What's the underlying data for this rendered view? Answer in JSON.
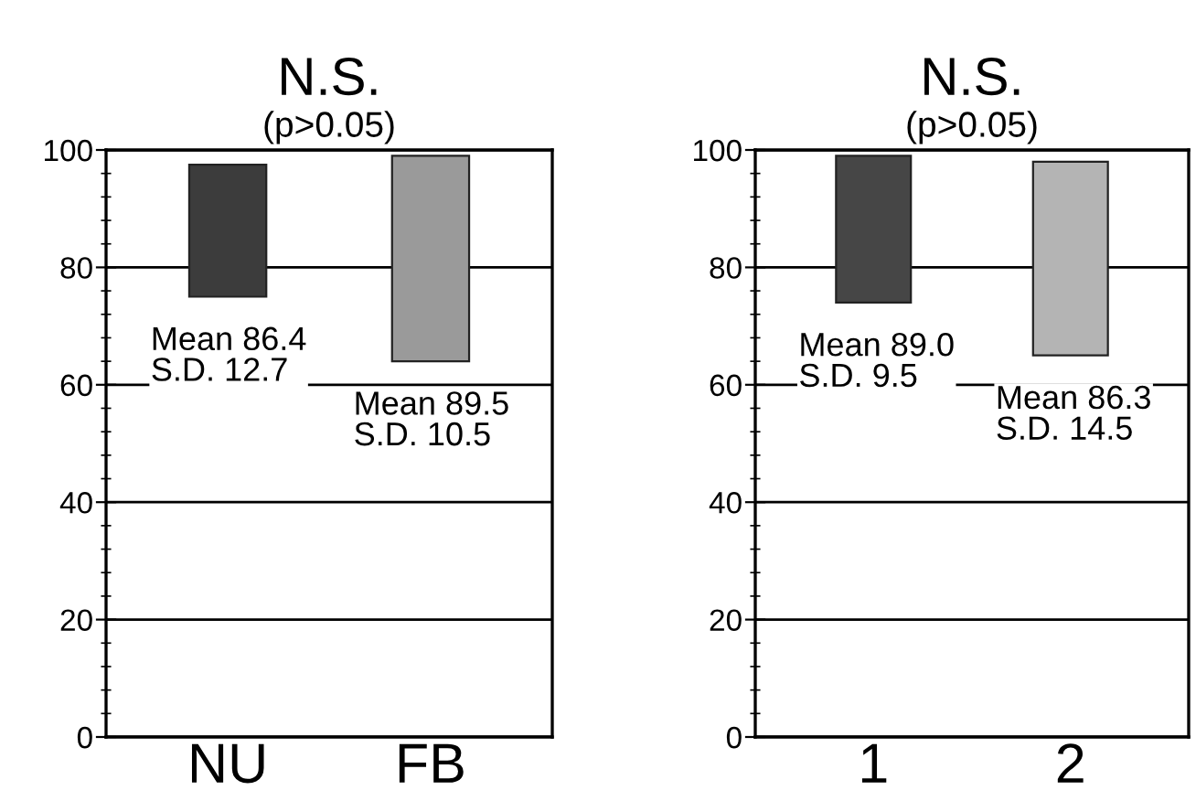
{
  "chart_data": [
    {
      "type": "bar",
      "title": "N.S.",
      "subtitle": "(p>0.05)",
      "categories": [
        "NU",
        "FB"
      ],
      "base": [
        75,
        64
      ],
      "values": [
        22.5,
        35
      ],
      "colors": [
        "#3c3c3c",
        "#9a9a9a"
      ],
      "ylim": [
        0,
        100
      ],
      "yticks": [
        0,
        {
          "value": 4,
          "label": null
        },
        {
          "value": 8,
          "label": null
        },
        {
          "value": 12,
          "label": null
        },
        {
          "value": 16,
          "label": null
        },
        20,
        {
          "value": 24,
          "label": null
        },
        {
          "value": 28,
          "label": null
        },
        {
          "value": 32,
          "label": null
        },
        {
          "value": 36,
          "label": null
        },
        40,
        {
          "value": 44,
          "label": null
        },
        {
          "value": 48,
          "label": null
        },
        {
          "value": 52,
          "label": null
        },
        {
          "value": 56,
          "label": null
        },
        60,
        {
          "value": 64,
          "label": null
        },
        {
          "value": 68,
          "label": null
        },
        {
          "value": 72,
          "label": null
        },
        {
          "value": 76,
          "label": null
        },
        80,
        {
          "value": 84,
          "label": null
        },
        {
          "value": 88,
          "label": null
        },
        {
          "value": 92,
          "label": null
        },
        {
          "value": 96,
          "label": null
        },
        100
      ],
      "grid": "y",
      "annotations": [
        "Mean 86.4\nS.D. 12.7",
        "Mean 89.5\nS.D. 10.5"
      ]
    },
    {
      "type": "bar",
      "title": "N.S.",
      "subtitle": "(p>0.05)",
      "categories": [
        "1",
        "2"
      ],
      "base": [
        74,
        65
      ],
      "values": [
        25,
        33
      ],
      "colors": [
        "#464646",
        "#b4b4b4"
      ],
      "ylim": [
        0,
        100
      ],
      "yticks": [
        0,
        {
          "value": 4,
          "label": null
        },
        {
          "value": 8,
          "label": null
        },
        {
          "value": 12,
          "label": null
        },
        {
          "value": 16,
          "label": null
        },
        20,
        {
          "value": 24,
          "label": null
        },
        {
          "value": 28,
          "label": null
        },
        {
          "value": 32,
          "label": null
        },
        {
          "value": 36,
          "label": null
        },
        40,
        {
          "value": 44,
          "label": null
        },
        {
          "value": 48,
          "label": null
        },
        {
          "value": 52,
          "label": null
        },
        {
          "value": 56,
          "label": null
        },
        60,
        {
          "value": 64,
          "label": null
        },
        {
          "value": 68,
          "label": null
        },
        {
          "value": 72,
          "label": null
        },
        {
          "value": 76,
          "label": null
        },
        80,
        {
          "value": 84,
          "label": null
        },
        {
          "value": 88,
          "label": null
        },
        {
          "value": 92,
          "label": null
        },
        {
          "value": 96,
          "label": null
        },
        100
      ],
      "grid": "y",
      "annotations": [
        "Mean 89.0\nS.D. 9.5",
        "Mean 86.3\nS.D. 14.5"
      ]
    }
  ]
}
